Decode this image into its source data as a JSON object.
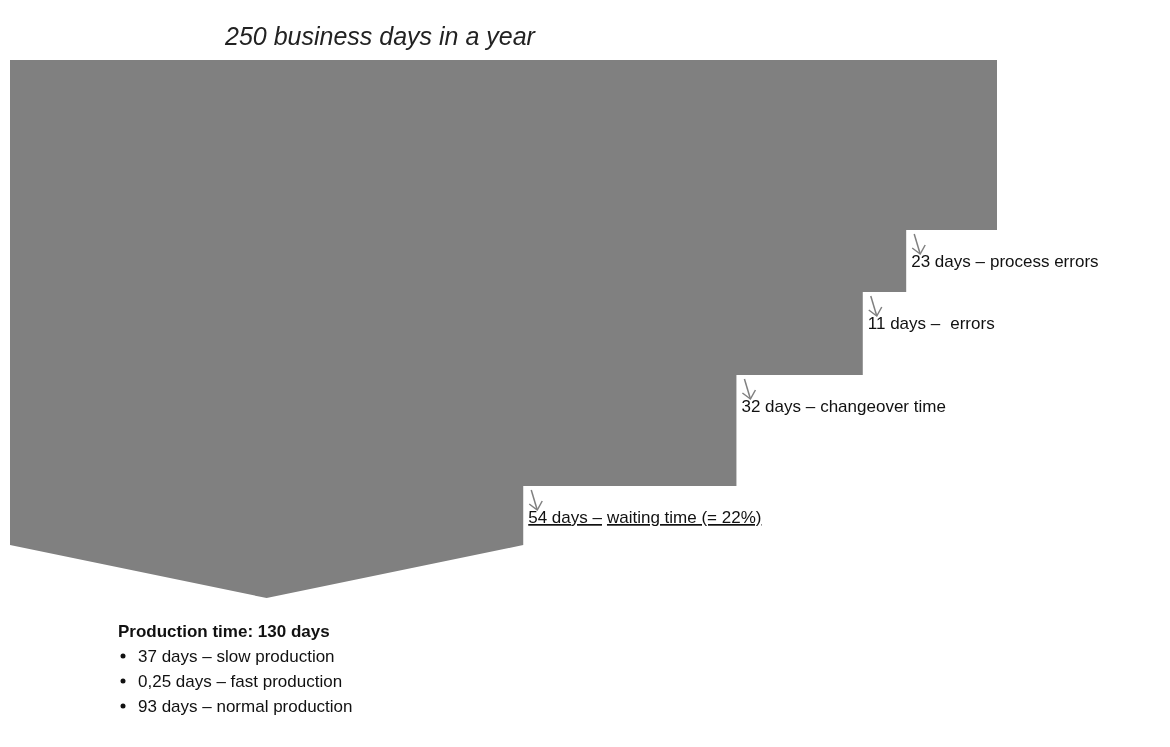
{
  "chart_data": {
    "type": "other",
    "title": "250 business days in a year",
    "categories": [
      "process errors",
      "errors",
      "changeover time",
      "waiting time (= 22%)",
      "Production time"
    ],
    "values": [
      23,
      11,
      32,
      54,
      130
    ],
    "value_labels": [
      "23 days –",
      "11 days –",
      "32 days –",
      "54 days –",
      ": 130 days"
    ],
    "color": "#808080",
    "annotations": [
      "37 days – slow production",
      "0,25 days – fast production",
      "93 days – normal production"
    ]
  }
}
